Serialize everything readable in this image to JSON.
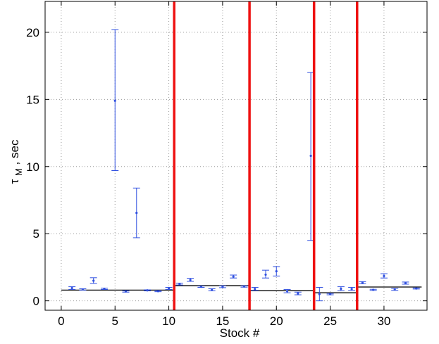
{
  "chart_data": {
    "type": "scatter",
    "title": "",
    "xlabel": "Stock #",
    "ylabel_main": "τ",
    "ylabel_sub": "M",
    "ylabel_rest": ", sec",
    "xlim": [
      -1.5,
      34
    ],
    "ylim": [
      -0.7,
      22.3
    ],
    "xticks": [
      0,
      5,
      10,
      15,
      20,
      25,
      30
    ],
    "yticks": [
      0,
      5,
      10,
      15,
      20
    ],
    "grid": "dotted",
    "series": [
      {
        "style": "points-with-errorbars",
        "color": "#3050e0",
        "points": [
          {
            "x": 1,
            "y": 0.95,
            "lo": 0.85,
            "hi": 1.05
          },
          {
            "x": 2,
            "y": 0.85,
            "lo": 0.8,
            "hi": 0.9
          },
          {
            "x": 3,
            "y": 1.5,
            "lo": 1.3,
            "hi": 1.72
          },
          {
            "x": 4,
            "y": 0.9,
            "lo": 0.85,
            "hi": 0.95
          },
          {
            "x": 5,
            "y": 14.9,
            "lo": 9.7,
            "hi": 20.2
          },
          {
            "x": 6,
            "y": 0.7,
            "lo": 0.65,
            "hi": 0.75
          },
          {
            "x": 7,
            "y": 6.55,
            "lo": 4.7,
            "hi": 8.4
          },
          {
            "x": 8,
            "y": 0.78,
            "lo": 0.74,
            "hi": 0.82
          },
          {
            "x": 9,
            "y": 0.72,
            "lo": 0.68,
            "hi": 0.76
          },
          {
            "x": 10,
            "y": 0.92,
            "lo": 0.85,
            "hi": 1.0
          },
          {
            "x": 11,
            "y": 1.25,
            "lo": 1.18,
            "hi": 1.32
          },
          {
            "x": 12,
            "y": 1.55,
            "lo": 1.45,
            "hi": 1.68
          },
          {
            "x": 13,
            "y": 1.05,
            "lo": 1.0,
            "hi": 1.1
          },
          {
            "x": 14,
            "y": 0.82,
            "lo": 0.75,
            "hi": 0.9
          },
          {
            "x": 15,
            "y": 1.05,
            "lo": 0.98,
            "hi": 1.12
          },
          {
            "x": 16,
            "y": 1.8,
            "lo": 1.7,
            "hi": 1.92
          },
          {
            "x": 17,
            "y": 1.07,
            "lo": 1.02,
            "hi": 1.12
          },
          {
            "x": 18,
            "y": 0.88,
            "lo": 0.78,
            "hi": 1.0
          },
          {
            "x": 19,
            "y": 1.95,
            "lo": 1.7,
            "hi": 2.28
          },
          {
            "x": 20,
            "y": 2.2,
            "lo": 1.85,
            "hi": 2.55
          },
          {
            "x": 21,
            "y": 0.72,
            "lo": 0.6,
            "hi": 0.85
          },
          {
            "x": 22,
            "y": 0.55,
            "lo": 0.45,
            "hi": 0.65
          },
          {
            "x": 23.2,
            "y": 10.8,
            "lo": 4.5,
            "hi": 17.0
          },
          {
            "x": 24,
            "y": 0.5,
            "lo": 0.0,
            "hi": 1.0
          },
          {
            "x": 25,
            "y": 0.5,
            "lo": 0.45,
            "hi": 0.55
          },
          {
            "x": 26,
            "y": 0.9,
            "lo": 0.75,
            "hi": 1.05
          },
          {
            "x": 27,
            "y": 0.88,
            "lo": 0.78,
            "hi": 1.0
          },
          {
            "x": 28,
            "y": 1.35,
            "lo": 1.27,
            "hi": 1.43
          },
          {
            "x": 29,
            "y": 0.82,
            "lo": 0.78,
            "hi": 0.86
          },
          {
            "x": 30,
            "y": 1.85,
            "lo": 1.7,
            "hi": 2.02
          },
          {
            "x": 31,
            "y": 0.85,
            "lo": 0.78,
            "hi": 0.92
          },
          {
            "x": 32,
            "y": 1.32,
            "lo": 1.24,
            "hi": 1.4
          },
          {
            "x": 33,
            "y": 0.92,
            "lo": 0.88,
            "hi": 0.96
          }
        ]
      }
    ],
    "group_means": [
      {
        "x_start": 0,
        "x_end": 10.5,
        "y": 0.8
      },
      {
        "x_start": 10.5,
        "x_end": 17.5,
        "y": 1.13
      },
      {
        "x_start": 17.5,
        "x_end": 23.5,
        "y": 0.75
      },
      {
        "x_start": 23.5,
        "x_end": 27.5,
        "y": 0.6
      },
      {
        "x_start": 27.5,
        "x_end": 33.5,
        "y": 1.03
      }
    ],
    "separators": [
      10.5,
      17.5,
      23.5,
      27.5
    ],
    "colors": {
      "points": "#3050e0",
      "separator": "#ee1111",
      "mean_line": "#000000",
      "grid": "#9a9a9a"
    }
  }
}
